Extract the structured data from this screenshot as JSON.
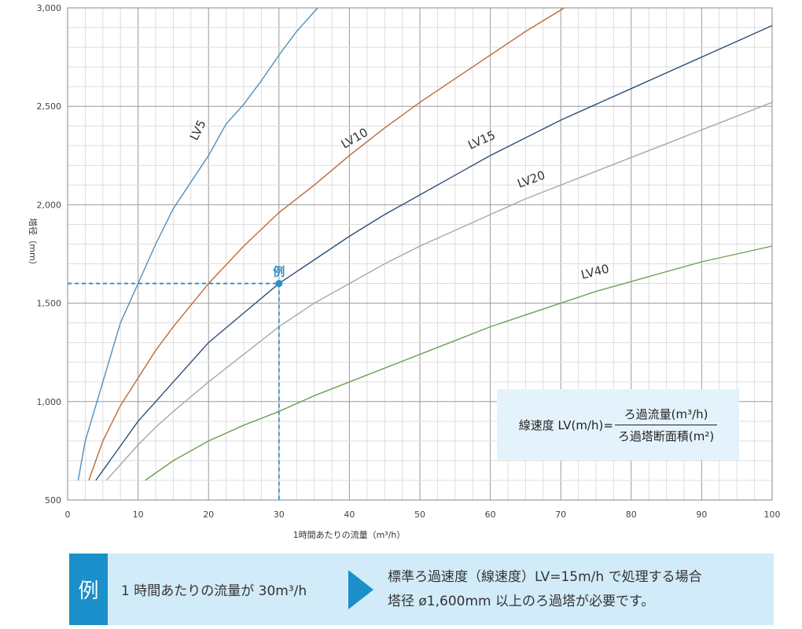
{
  "chart_data": {
    "type": "line",
    "title": "",
    "xlabel": "1時間あたりの流量（m³/h）",
    "ylabel": "塔径（mm）",
    "xlim": [
      0,
      100
    ],
    "ylim": [
      500,
      3000
    ],
    "x_ticks": [
      0,
      10,
      20,
      30,
      40,
      50,
      60,
      70,
      80,
      90,
      100
    ],
    "y_ticks": [
      500,
      1000,
      1500,
      2000,
      2500,
      3000
    ],
    "x_tick_labels": [
      "0",
      "10",
      "20",
      "30",
      "40",
      "50",
      "60",
      "70",
      "80",
      "90",
      "100"
    ],
    "y_tick_labels": [
      "500",
      "1,000",
      "1,500",
      "2,000",
      "2,500",
      "3,000"
    ],
    "grid": true,
    "series": [
      {
        "name": "LV5",
        "color": "#4f8fbf",
        "label": "LV5",
        "x": [
          1.5,
          2.5,
          5,
          7.5,
          10,
          12.5,
          15,
          20,
          22.5,
          25,
          27.5,
          30,
          32.5,
          35.5
        ],
        "y": [
          600,
          800,
          1100,
          1400,
          1600,
          1800,
          1980,
          2250,
          2410,
          2510,
          2630,
          2760,
          2880,
          3000
        ]
      },
      {
        "name": "LV10",
        "color": "#c0693a",
        "label": "LV10",
        "x": [
          3,
          5,
          7.5,
          10,
          12.5,
          15,
          20,
          25,
          30,
          35,
          40,
          45,
          50,
          55,
          60,
          65,
          70.5
        ],
        "y": [
          600,
          800,
          980,
          1120,
          1260,
          1380,
          1600,
          1790,
          1960,
          2100,
          2250,
          2390,
          2520,
          2640,
          2760,
          2880,
          3000
        ]
      },
      {
        "name": "LV15",
        "color": "#2c4f78",
        "label": "LV15",
        "x": [
          4,
          6,
          8,
          10,
          12.5,
          15,
          20,
          25,
          30,
          35,
          40,
          45,
          50,
          55,
          60,
          65,
          70,
          75,
          80,
          85,
          90,
          95,
          100
        ],
        "y": [
          600,
          700,
          800,
          900,
          1000,
          1100,
          1300,
          1450,
          1600,
          1720,
          1840,
          1950,
          2050,
          2150,
          2250,
          2340,
          2430,
          2510,
          2590,
          2670,
          2750,
          2830,
          2910
        ]
      },
      {
        "name": "LV20",
        "color": "#a8a8a8",
        "label": "LV20",
        "x": [
          5.5,
          8,
          10,
          12.5,
          15,
          20,
          25,
          30,
          35,
          40,
          45,
          50,
          55,
          60,
          65,
          70,
          75,
          80,
          85,
          90,
          95,
          100
        ],
        "y": [
          600,
          700,
          780,
          870,
          950,
          1100,
          1240,
          1380,
          1500,
          1600,
          1700,
          1790,
          1870,
          1950,
          2030,
          2100,
          2170,
          2240,
          2310,
          2380,
          2450,
          2520
        ]
      },
      {
        "name": "LV40",
        "color": "#6ea050",
        "label": "LV40",
        "x": [
          11,
          15,
          20,
          25,
          30,
          35,
          40,
          45,
          50,
          55,
          60,
          65,
          70,
          75,
          80,
          85,
          90,
          95,
          100
        ],
        "y": [
          600,
          700,
          800,
          880,
          950,
          1030,
          1100,
          1170,
          1240,
          1310,
          1380,
          1440,
          1500,
          1560,
          1610,
          1660,
          1710,
          1750,
          1790
        ]
      }
    ],
    "example_point": {
      "x": 30,
      "y": 1600,
      "label": "例",
      "color": "#2a8fc7"
    }
  },
  "formula": {
    "lhs": "線速度 LV(m/h)=",
    "numerator": "ろ過流量(m³/h)",
    "denominator": "ろ過塔断面積(m²)"
  },
  "example_box": {
    "badge": "例",
    "condition": "1 時間あたりの流量が 30m³/h",
    "result_line1": "標準ろ過速度（線速度）LV=15m/h で処理する場合",
    "result_line2": "塔径 ø1,600mm 以上のろ過塔が必要です。"
  }
}
